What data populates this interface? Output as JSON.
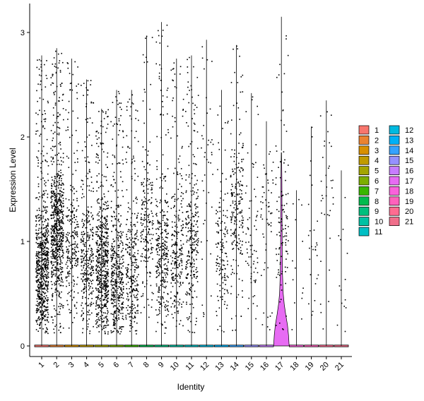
{
  "chart_data": {
    "type": "violin",
    "xlabel": "Identity",
    "ylabel": "Expression Level",
    "ylim": [
      -0.15,
      3.3
    ],
    "yticks": [
      0,
      1,
      2,
      3
    ],
    "categories": [
      "1",
      "2",
      "3",
      "4",
      "5",
      "6",
      "7",
      "8",
      "9",
      "10",
      "11",
      "12",
      "13",
      "14",
      "15",
      "16",
      "17",
      "18",
      "19",
      "20",
      "21"
    ],
    "max_values": [
      2.78,
      2.85,
      2.75,
      2.55,
      2.27,
      2.45,
      2.45,
      2.97,
      3.1,
      2.75,
      2.78,
      2.93,
      2.45,
      2.88,
      2.42,
      2.15,
      3.15,
      1.49,
      2.1,
      2.35,
      1.68
    ],
    "point_density": [
      1.0,
      1.0,
      0.35,
      0.45,
      0.85,
      0.6,
      0.4,
      0.28,
      0.45,
      0.35,
      0.4,
      0.06,
      0.2,
      0.3,
      0.1,
      0.08,
      0.15,
      0.02,
      0.04,
      0.05,
      0.02
    ],
    "point_center": [
      0.75,
      1.1,
      1.0,
      0.8,
      0.75,
      0.7,
      0.7,
      1.2,
      0.9,
      0.9,
      1.0,
      1.7,
      0.9,
      1.3,
      1.0,
      1.4,
      1.2,
      0.8,
      1.0,
      1.6,
      0.6
    ],
    "violin_17": {
      "density": [
        [
          0.0,
          1.0
        ],
        [
          0.1,
          0.92
        ],
        [
          0.2,
          0.78
        ],
        [
          0.3,
          0.55
        ],
        [
          0.4,
          0.36
        ],
        [
          0.5,
          0.24
        ],
        [
          0.7,
          0.14
        ],
        [
          1.0,
          0.1
        ],
        [
          1.3,
          0.08
        ],
        [
          1.6,
          0.06
        ],
        [
          1.85,
          0.02
        ]
      ],
      "max": 1.87
    },
    "colors": [
      "#F8766D",
      "#EA8331",
      "#D89000",
      "#C09B00",
      "#A3A500",
      "#7CAE00",
      "#39B600",
      "#00BB4E",
      "#00BF7D",
      "#00C1A3",
      "#00BFC4",
      "#00BAE0",
      "#00B0F6",
      "#35A2FF",
      "#9590FF",
      "#C77CFF",
      "#E76BF3",
      "#FA62DB",
      "#FF62BC",
      "#FF6C91",
      "#F06F8B"
    ],
    "legend": {
      "col1": [
        "1",
        "2",
        "3",
        "4",
        "5",
        "6",
        "7",
        "8",
        "9",
        "10",
        "11"
      ],
      "col2": [
        "12",
        "13",
        "14",
        "15",
        "16",
        "17",
        "18",
        "19",
        "20",
        "21"
      ]
    }
  }
}
